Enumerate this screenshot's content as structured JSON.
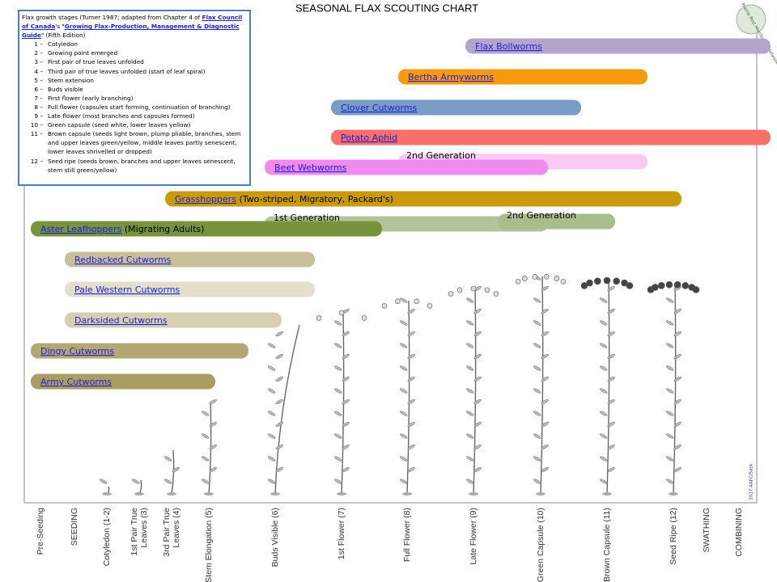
{
  "title": "SEASONAL FLAX SCOUTING CHART",
  "logo_text": "Prairie Pest Monitoring Network",
  "credit": "2017 AAFC/Sask",
  "legend": {
    "intro": [
      {
        "text": "Flax growth stages (Turner 1987; adapted from Chapter 4 of "
      },
      {
        "text": "Flax Council of Canada",
        "link": true
      },
      {
        "text": "'s \""
      },
      {
        "text": "Growing Flax-Production, Management & Diagnostic Guide",
        "link": true
      },
      {
        "text": "\" (Fifth Edition)"
      }
    ],
    "stages": [
      {
        "number": "1 –",
        "text": "Cotyledon"
      },
      {
        "number": "2 –",
        "text": "Growing point emerged"
      },
      {
        "number": "3 –",
        "text": "First pair of true leaves unfolded"
      },
      {
        "number": "4 –",
        "text": "Third pair of true leaves unfolded (start of leaf spiral)"
      },
      {
        "number": "5 –",
        "text": "Stem extension"
      },
      {
        "number": "6 –",
        "text": "Buds visible"
      },
      {
        "number": "7 –",
        "text": "First flower (early branching)"
      },
      {
        "number": "8 –",
        "text": "Full flower (capsules start forming, continuation of branching)"
      },
      {
        "number": "9 –",
        "text": "Late flower (most branches and capsules formed)"
      },
      {
        "number": "10 –",
        "text": "Green capsule (seed white, lower leaves yellow)"
      },
      {
        "number": "11 –",
        "text": "Brown capsule (seeds light brown, plump pliable, branches, stem and upper leaves green/yellow, middle leaves partly senescent, lower leaves shrivelled or dropped)"
      },
      {
        "number": "12 –",
        "text": "Seed ripe (seeds brown, branches and upper leaves senescent, stem still green/yellow)"
      }
    ]
  },
  "bars": [
    {
      "name": "Flax Bollworms",
      "color": "#b3a6cc"
    },
    {
      "name": "Bertha Armyworms",
      "color": "#f79a0e"
    },
    {
      "name": "Clover Cutworms",
      "color": "#7a9cc6"
    },
    {
      "name": "Potato Aphid",
      "color": "#f86f6b"
    },
    {
      "name": "2nd Generation",
      "color": "#fbc9f4"
    },
    {
      "name": "Beet Webworms",
      "color": "#f08cf0"
    },
    {
      "name": "Grasshoppers",
      "note": "(Two-striped, Migratory, Packard's)",
      "color": "#c99a0a"
    },
    {
      "name": "1st Generation",
      "color": "#b4c49a"
    },
    {
      "name": "2nd Generation",
      "color": "#a9bc8c"
    },
    {
      "name": "Aster Leafhoppers",
      "note": "(Migrating Adults)",
      "color": "#77933c"
    },
    {
      "name": "Redbacked Cutworms",
      "color": "#c7c09b"
    },
    {
      "name": "Pale Western Cutworms",
      "color": "#e2dfcc"
    },
    {
      "name": "Darksided Cutworms",
      "color": "#d5d0b0"
    },
    {
      "name": "Dingy Cutworms",
      "color": "#b3a774"
    },
    {
      "name": "Army Cutworms",
      "color": "#a99d63"
    }
  ],
  "stages_axis": [
    [
      "Pre-Seeding"
    ],
    [
      "SEEDING"
    ],
    [
      "Cotyledon (1-2)"
    ],
    [
      "1st Pair True",
      "Leaves (3)"
    ],
    [
      "3rd Pair True",
      "Leaves (4)"
    ],
    [
      "Stem Elongation (5)"
    ],
    [
      "Buds Visible (6)"
    ],
    [
      "1st Flower (7)"
    ],
    [
      "Full Flower (8)"
    ],
    [
      "Late Flower (9)"
    ],
    [
      "Green Capsule (10)"
    ],
    [
      "Brown Capsule (11)"
    ],
    [
      "Seed Ripe (12)"
    ],
    [
      "SWATHING"
    ],
    [
      "COMBINING"
    ]
  ]
}
